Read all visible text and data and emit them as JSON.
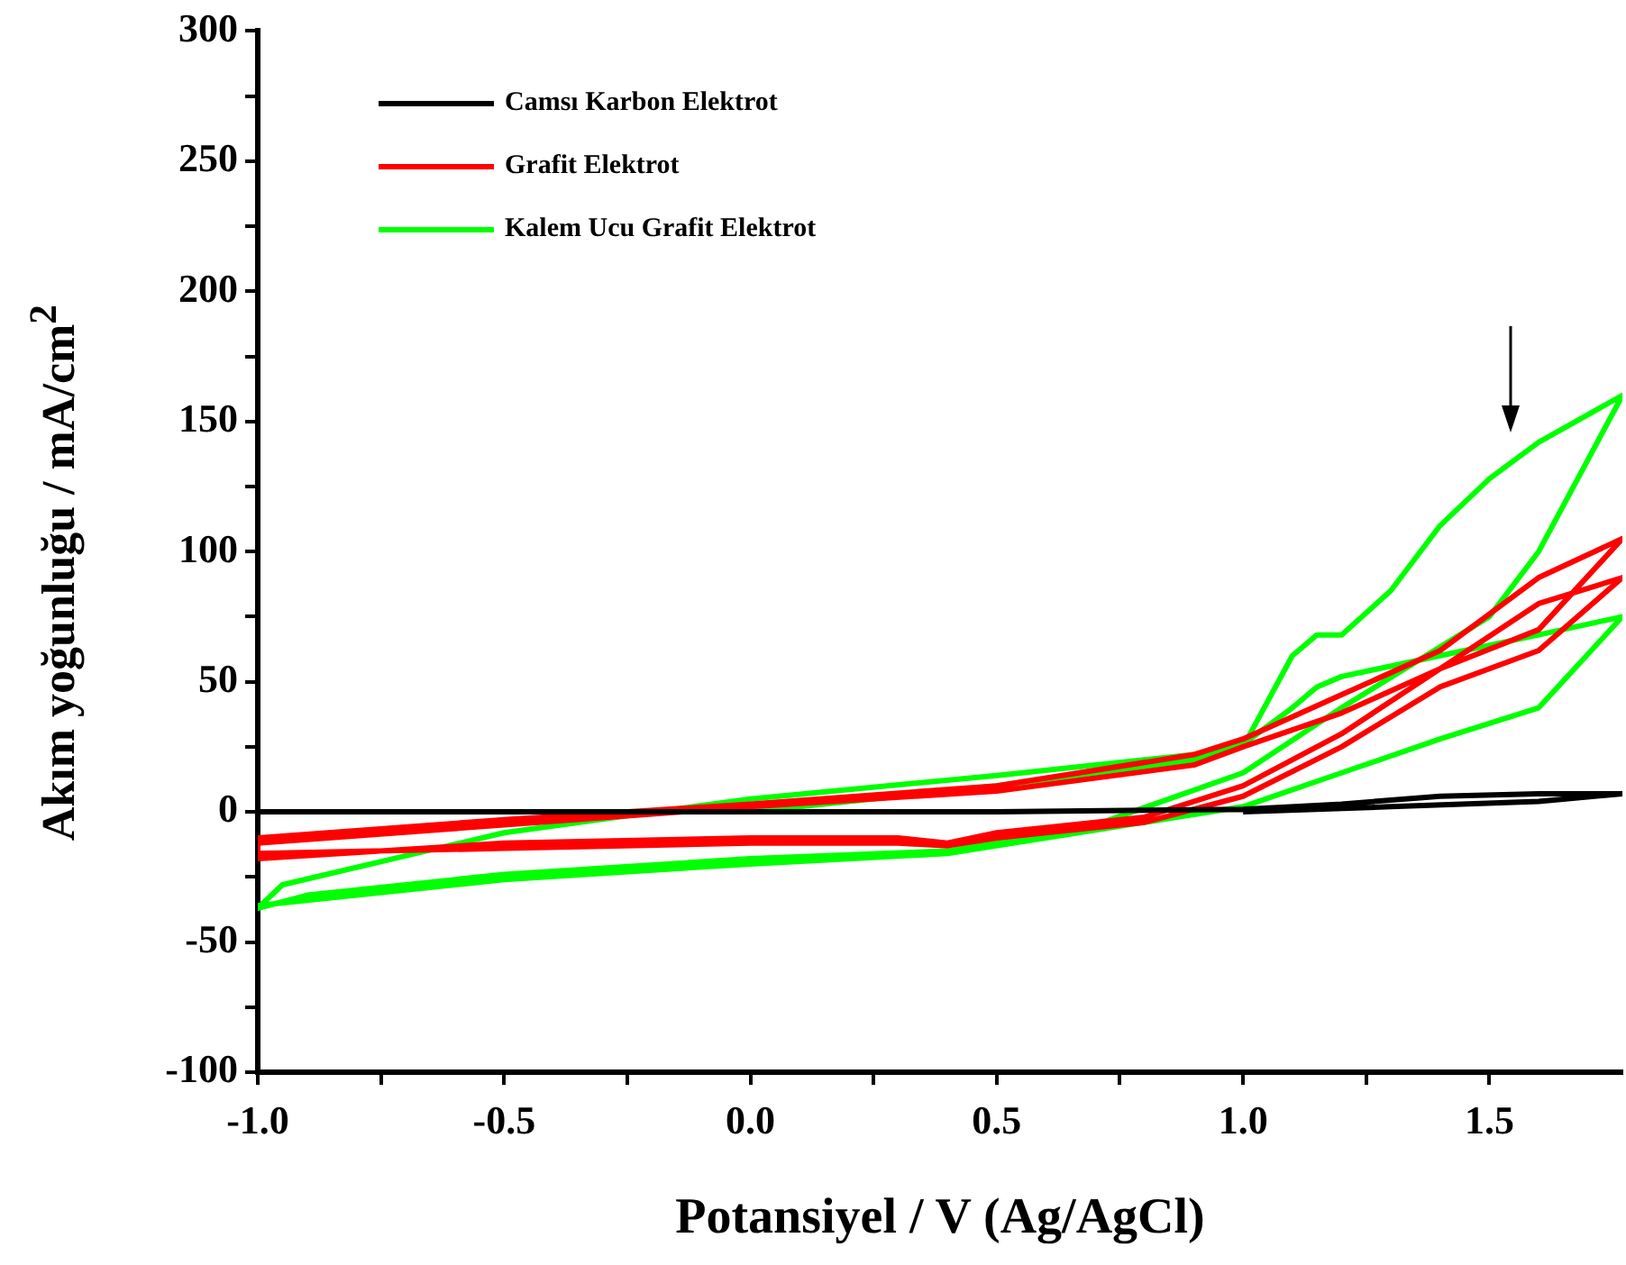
{
  "chart_data": {
    "type": "line",
    "xlabel": "Potansiyel / V (Ag/AgCl)",
    "ylabel": "Akım yoğunluğu / mA/cm$^{2}$",
    "legend": "top left",
    "marker": "none",
    "grid": false,
    "xlim": [
      -1,
      1.77
    ],
    "ylim": [
      -100,
      300
    ],
    "xticks": [
      {
        "value": -1,
        "label": "-1.0"
      },
      {
        "value": -0.75,
        "label": null
      },
      {
        "value": -0.5,
        "label": "-0.5"
      },
      {
        "value": -0.25,
        "label": null
      },
      {
        "value": 0,
        "label": "0.0"
      },
      {
        "value": 0.25,
        "label": null
      },
      {
        "value": 0.5,
        "label": "0.5"
      },
      {
        "value": 0.75,
        "label": null
      },
      {
        "value": 1,
        "label": "1.0"
      },
      {
        "value": 1.25,
        "label": null
      },
      {
        "value": 1.5,
        "label": "1.5"
      }
    ],
    "yticks": [
      -100,
      {
        "value": -75,
        "label": null
      },
      -50,
      {
        "value": -25,
        "label": null
      },
      0,
      {
        "value": 25,
        "label": null
      },
      50,
      {
        "value": 75,
        "label": null
      },
      100,
      {
        "value": 125,
        "label": null
      },
      150,
      {
        "value": 175,
        "label": null
      },
      200,
      {
        "value": 225,
        "label": null
      },
      250,
      {
        "value": 275,
        "label": null
      },
      300
    ],
    "series": [
      {
        "name": "Camsı Karbon Elektrot",
        "color": "#000000",
        "x": [
          -1,
          -0.5,
          0,
          0.5,
          1,
          1.2,
          1.4,
          1.6,
          1.77,
          1.6,
          1.3,
          1
        ],
        "values": [
          0,
          0,
          0,
          0,
          1,
          3,
          6,
          7,
          7,
          4,
          2,
          0
        ]
      },
      {
        "name": "Grafit Elektrot",
        "color": "#ff0000",
        "x": [
          -1,
          -0.5,
          0,
          0.5,
          0.9,
          1,
          1.2,
          1.4,
          1.6,
          1.77,
          1.6,
          1.4,
          1.2,
          1,
          0.8,
          0.5,
          0.4,
          0.3,
          0,
          -0.5,
          -1,
          -1,
          -0.5,
          0,
          0.5,
          0.9,
          1,
          1.2,
          1.4,
          1.6,
          1.77,
          1.6,
          1.4,
          1.2,
          1,
          0.8,
          0.5,
          0.4,
          0.3,
          0,
          -0.5,
          -1
        ],
        "values": [
          -10,
          -3,
          3,
          10,
          22,
          28,
          45,
          62,
          90,
          105,
          70,
          55,
          30,
          10,
          -2,
          -8,
          -12,
          -10,
          -10,
          -12,
          -18,
          -12,
          -5,
          2,
          8,
          18,
          25,
          38,
          55,
          80,
          90,
          62,
          48,
          25,
          6,
          -4,
          -10,
          -13,
          -12,
          -12,
          -14,
          -16
        ]
      },
      {
        "name": "Kalem Ucu Grafit Elektrot",
        "color": "#00ff00",
        "x": [
          0,
          0.5,
          0.9,
          1,
          1.1,
          1.15,
          1.2,
          1.3,
          1.4,
          1.5,
          1.6,
          1.77,
          1.6,
          1.5,
          1.2,
          1,
          0.7,
          0.4,
          0,
          -0.5,
          -0.9,
          -1,
          -0.95,
          -0.5,
          0,
          0.5,
          0.9,
          1,
          1.1,
          1.15,
          1.2,
          1.4,
          1.6,
          1.77,
          1.6,
          1.4,
          1.2,
          1,
          0.7,
          0.4,
          0,
          -0.5,
          -1
        ],
        "values": [
          0,
          10,
          20,
          25,
          60,
          68,
          68,
          85,
          110,
          128,
          142,
          160,
          100,
          75,
          40,
          15,
          -5,
          -15,
          -18,
          -24,
          -32,
          -37,
          -28,
          -8,
          5,
          14,
          22,
          26,
          40,
          48,
          52,
          60,
          68,
          75,
          40,
          28,
          15,
          2,
          -7,
          -16,
          -20,
          -26,
          -36
        ]
      }
    ]
  }
}
